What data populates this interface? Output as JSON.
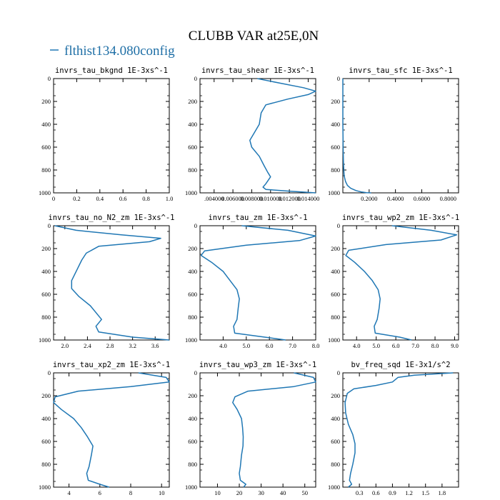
{
  "figure": {
    "title": "CLUBB VAR at25E,0N",
    "legend_label": "flthist134.080config",
    "legend_color": "#1f77b4"
  },
  "chart_data": [
    {
      "type": "line",
      "title": "invrs_tau_bkgnd   1E-3xs^-1",
      "xlim": [
        0,
        1.0
      ],
      "ylim": [
        1000,
        0
      ],
      "xticks": [
        0,
        0.2,
        0.4,
        0.6,
        0.8,
        1.0
      ],
      "xtick_labels": [
        "0",
        "0.2",
        "0.4",
        "0.6",
        "0.8",
        "1.0"
      ],
      "yticks": [
        0,
        200,
        400,
        600,
        800,
        1000
      ],
      "ytick_labels": [
        "0",
        "200",
        "400",
        "600",
        "800",
        "1000"
      ],
      "series": [
        {
          "x": [],
          "y": []
        }
      ]
    },
    {
      "type": "line",
      "title": "invrs_tau_shear   1E-3xs^-1",
      "xlim": [
        0.0025,
        0.0148
      ],
      "ylim": [
        1000,
        0
      ],
      "xticks": [
        0.004,
        0.006,
        0.008,
        0.01,
        0.012,
        0.014
      ],
      "xtick_labels": [
        ".004000",
        "0.006000",
        "0.008000",
        "0.010000",
        "0.012000",
        "0.014000"
      ],
      "yticks": [
        0,
        200,
        400,
        600,
        800,
        1000
      ],
      "ytick_labels": [
        "0",
        "200",
        "400",
        "600",
        "800",
        "1000"
      ],
      "series": [
        {
          "x": [
            0.0086,
            0.011,
            0.0135,
            0.0148,
            0.014,
            0.0118,
            0.0095,
            0.009,
            0.0088,
            0.0083,
            0.0078,
            0.008,
            0.0088,
            0.0093,
            0.0097,
            0.01,
            0.0095,
            0.0092,
            0.0095,
            0.012,
            0.0148
          ],
          "y": [
            0,
            40,
            80,
            110,
            140,
            180,
            230,
            300,
            400,
            470,
            540,
            600,
            680,
            760,
            820,
            860,
            920,
            950,
            970,
            985,
            1000
          ]
        }
      ]
    },
    {
      "type": "line",
      "title": "invrs_tau_sfc   1E-3xs^-1",
      "xlim": [
        0,
        0.88
      ],
      "ylim": [
        1000,
        0
      ],
      "xticks": [
        0.2,
        0.4,
        0.6,
        0.8
      ],
      "xtick_labels": [
        "0.2000",
        "0.4000",
        "0.6000",
        "0.8000"
      ],
      "yticks": [
        0,
        200,
        400,
        600,
        800,
        1000
      ],
      "ytick_labels": [
        "0",
        "200",
        "400",
        "600",
        "800",
        "1000"
      ],
      "series": [
        {
          "x": [
            0.0,
            0.0,
            0.002,
            0.005,
            0.01,
            0.02,
            0.035,
            0.06,
            0.1,
            0.14,
            0.18,
            0.215
          ],
          "y": [
            0,
            400,
            600,
            750,
            850,
            900,
            935,
            960,
            980,
            992,
            998,
            1000
          ]
        }
      ]
    },
    {
      "type": "line",
      "title": "invrs_tau_no_N2_zm   1E-3xs^-1",
      "xlim": [
        1.8,
        3.85
      ],
      "ylim": [
        1000,
        0
      ],
      "xticks": [
        2.0,
        2.4,
        2.8,
        3.2,
        3.6
      ],
      "xtick_labels": [
        "2.0",
        "2.4",
        "2.8",
        "3.2",
        "3.6"
      ],
      "yticks": [
        0,
        200,
        400,
        600,
        800,
        1000
      ],
      "ytick_labels": [
        "0",
        "200",
        "400",
        "600",
        "800",
        "1000"
      ],
      "series": [
        {
          "x": [
            1.82,
            2.2,
            3.0,
            3.7,
            3.5,
            2.6,
            2.38,
            2.3,
            2.22,
            2.12,
            2.12,
            2.25,
            2.45,
            2.65,
            2.55,
            2.6,
            3.2,
            3.85
          ],
          "y": [
            0,
            40,
            80,
            110,
            140,
            180,
            240,
            300,
            380,
            480,
            550,
            620,
            700,
            820,
            880,
            930,
            975,
            1000
          ]
        }
      ]
    },
    {
      "type": "line",
      "title": "invrs_tau_zm   1E-3xs^-1",
      "xlim": [
        3.0,
        8.0
      ],
      "ylim": [
        1000,
        0
      ],
      "xticks": [
        4.0,
        5.0,
        6.0,
        7.0,
        8.0
      ],
      "xtick_labels": [
        "4.0",
        "5.0",
        "6.0",
        "7.0",
        "8.0"
      ],
      "yticks": [
        0,
        200,
        400,
        600,
        800,
        1000
      ],
      "ytick_labels": [
        "0",
        "200",
        "400",
        "600",
        "800",
        "1000"
      ],
      "series": [
        {
          "x": [
            4.8,
            6.8,
            8.0,
            7.3,
            5.0,
            3.2,
            3.05,
            3.5,
            4.0,
            4.3,
            4.6,
            4.7,
            4.65,
            4.6,
            4.45,
            4.5,
            5.8,
            6.7
          ],
          "y": [
            0,
            40,
            90,
            130,
            170,
            220,
            260,
            320,
            400,
            480,
            560,
            640,
            720,
            820,
            880,
            940,
            975,
            1000
          ]
        }
      ]
    },
    {
      "type": "line",
      "title": "invrs_tau_wp2_zm   1E-3xs^-1",
      "xlim": [
        3.3,
        9.2
      ],
      "ylim": [
        1000,
        0
      ],
      "xticks": [
        4.0,
        5.0,
        6.0,
        7.0,
        8.0,
        9.0
      ],
      "xtick_labels": [
        "4.0",
        "5.0",
        "6.0",
        "7.0",
        "8.0",
        "9.0"
      ],
      "yticks": [
        0,
        200,
        400,
        600,
        800,
        1000
      ],
      "ytick_labels": [
        "0",
        "200",
        "400",
        "600",
        "800",
        "1000"
      ],
      "series": [
        {
          "x": [
            5.8,
            7.8,
            9.1,
            8.3,
            5.5,
            3.6,
            3.45,
            3.9,
            4.4,
            4.8,
            5.1,
            5.2,
            5.15,
            5.05,
            4.9,
            4.95,
            6.2,
            6.8
          ],
          "y": [
            0,
            40,
            80,
            125,
            165,
            215,
            260,
            320,
            400,
            480,
            560,
            640,
            720,
            820,
            880,
            940,
            975,
            1000
          ]
        }
      ]
    },
    {
      "type": "line",
      "title": "invrs_tau_xp2_zm   1E-3xs^-1",
      "xlim": [
        3.0,
        10.5
      ],
      "ylim": [
        1000,
        0
      ],
      "xticks": [
        4,
        6,
        8,
        10
      ],
      "xtick_labels": [
        "4",
        "6",
        "8",
        "10"
      ],
      "yticks": [
        0,
        200,
        400,
        600,
        800,
        1000
      ],
      "ytick_labels": [
        "0",
        "200",
        "400",
        "600",
        "800",
        "1000"
      ],
      "series": [
        {
          "x": [
            8.5,
            10.3,
            10.5,
            8.0,
            4.6,
            3.1,
            3.0,
            3.5,
            4.3,
            4.8,
            5.2,
            5.55,
            5.45,
            5.3,
            5.15,
            5.25,
            6.0,
            6.6
          ],
          "y": [
            0,
            40,
            80,
            120,
            160,
            210,
            260,
            320,
            400,
            480,
            560,
            640,
            720,
            820,
            880,
            940,
            975,
            1000
          ]
        }
      ]
    },
    {
      "type": "line",
      "title": "invrs_tau_wp3_zm   1E-3xs^-1",
      "xlim": [
        2.0,
        55.0
      ],
      "ylim": [
        1000,
        0
      ],
      "xticks": [
        10,
        20,
        30,
        40,
        50
      ],
      "xtick_labels": [
        "10",
        "20",
        "30",
        "40",
        "50"
      ],
      "yticks": [
        0,
        200,
        400,
        600,
        800,
        1000
      ],
      "ytick_labels": [
        "0",
        "200",
        "400",
        "600",
        "800",
        "1000"
      ],
      "series": [
        {
          "x": [
            45.0,
            54.0,
            55.0,
            45.0,
            24.0,
            18.0,
            17.0,
            19.0,
            21.0,
            21.5,
            21.8,
            21.7,
            21.0,
            20.5,
            20.0,
            20.5,
            23.0,
            22.0
          ],
          "y": [
            0,
            40,
            80,
            120,
            160,
            210,
            260,
            320,
            400,
            480,
            560,
            640,
            720,
            820,
            880,
            940,
            975,
            1000
          ]
        }
      ]
    },
    {
      "type": "line",
      "title": "bv_freq_sqd   1E-3x1/s^2",
      "xlim": [
        0.0,
        2.1
      ],
      "ylim": [
        1000,
        0
      ],
      "xticks": [
        0.3,
        0.6,
        0.9,
        1.2,
        1.5,
        1.8
      ],
      "xtick_labels": [
        "0.3",
        "0.6",
        "0.9",
        "1.2",
        "1.5",
        "1.8"
      ],
      "yticks": [
        0,
        200,
        400,
        600,
        800,
        1000
      ],
      "ytick_labels": [
        "0",
        "200",
        "400",
        "600",
        "800",
        "1000"
      ],
      "series": [
        {
          "x": [
            2.0,
            1.3,
            1.0,
            0.9,
            0.6,
            0.2,
            0.08,
            0.04,
            0.05,
            0.1,
            0.18,
            0.22,
            0.22,
            0.18,
            0.14,
            0.12,
            0.16,
            0.1
          ],
          "y": [
            0,
            20,
            40,
            80,
            110,
            140,
            180,
            260,
            350,
            450,
            540,
            620,
            700,
            800,
            880,
            940,
            975,
            1000
          ]
        }
      ]
    }
  ]
}
